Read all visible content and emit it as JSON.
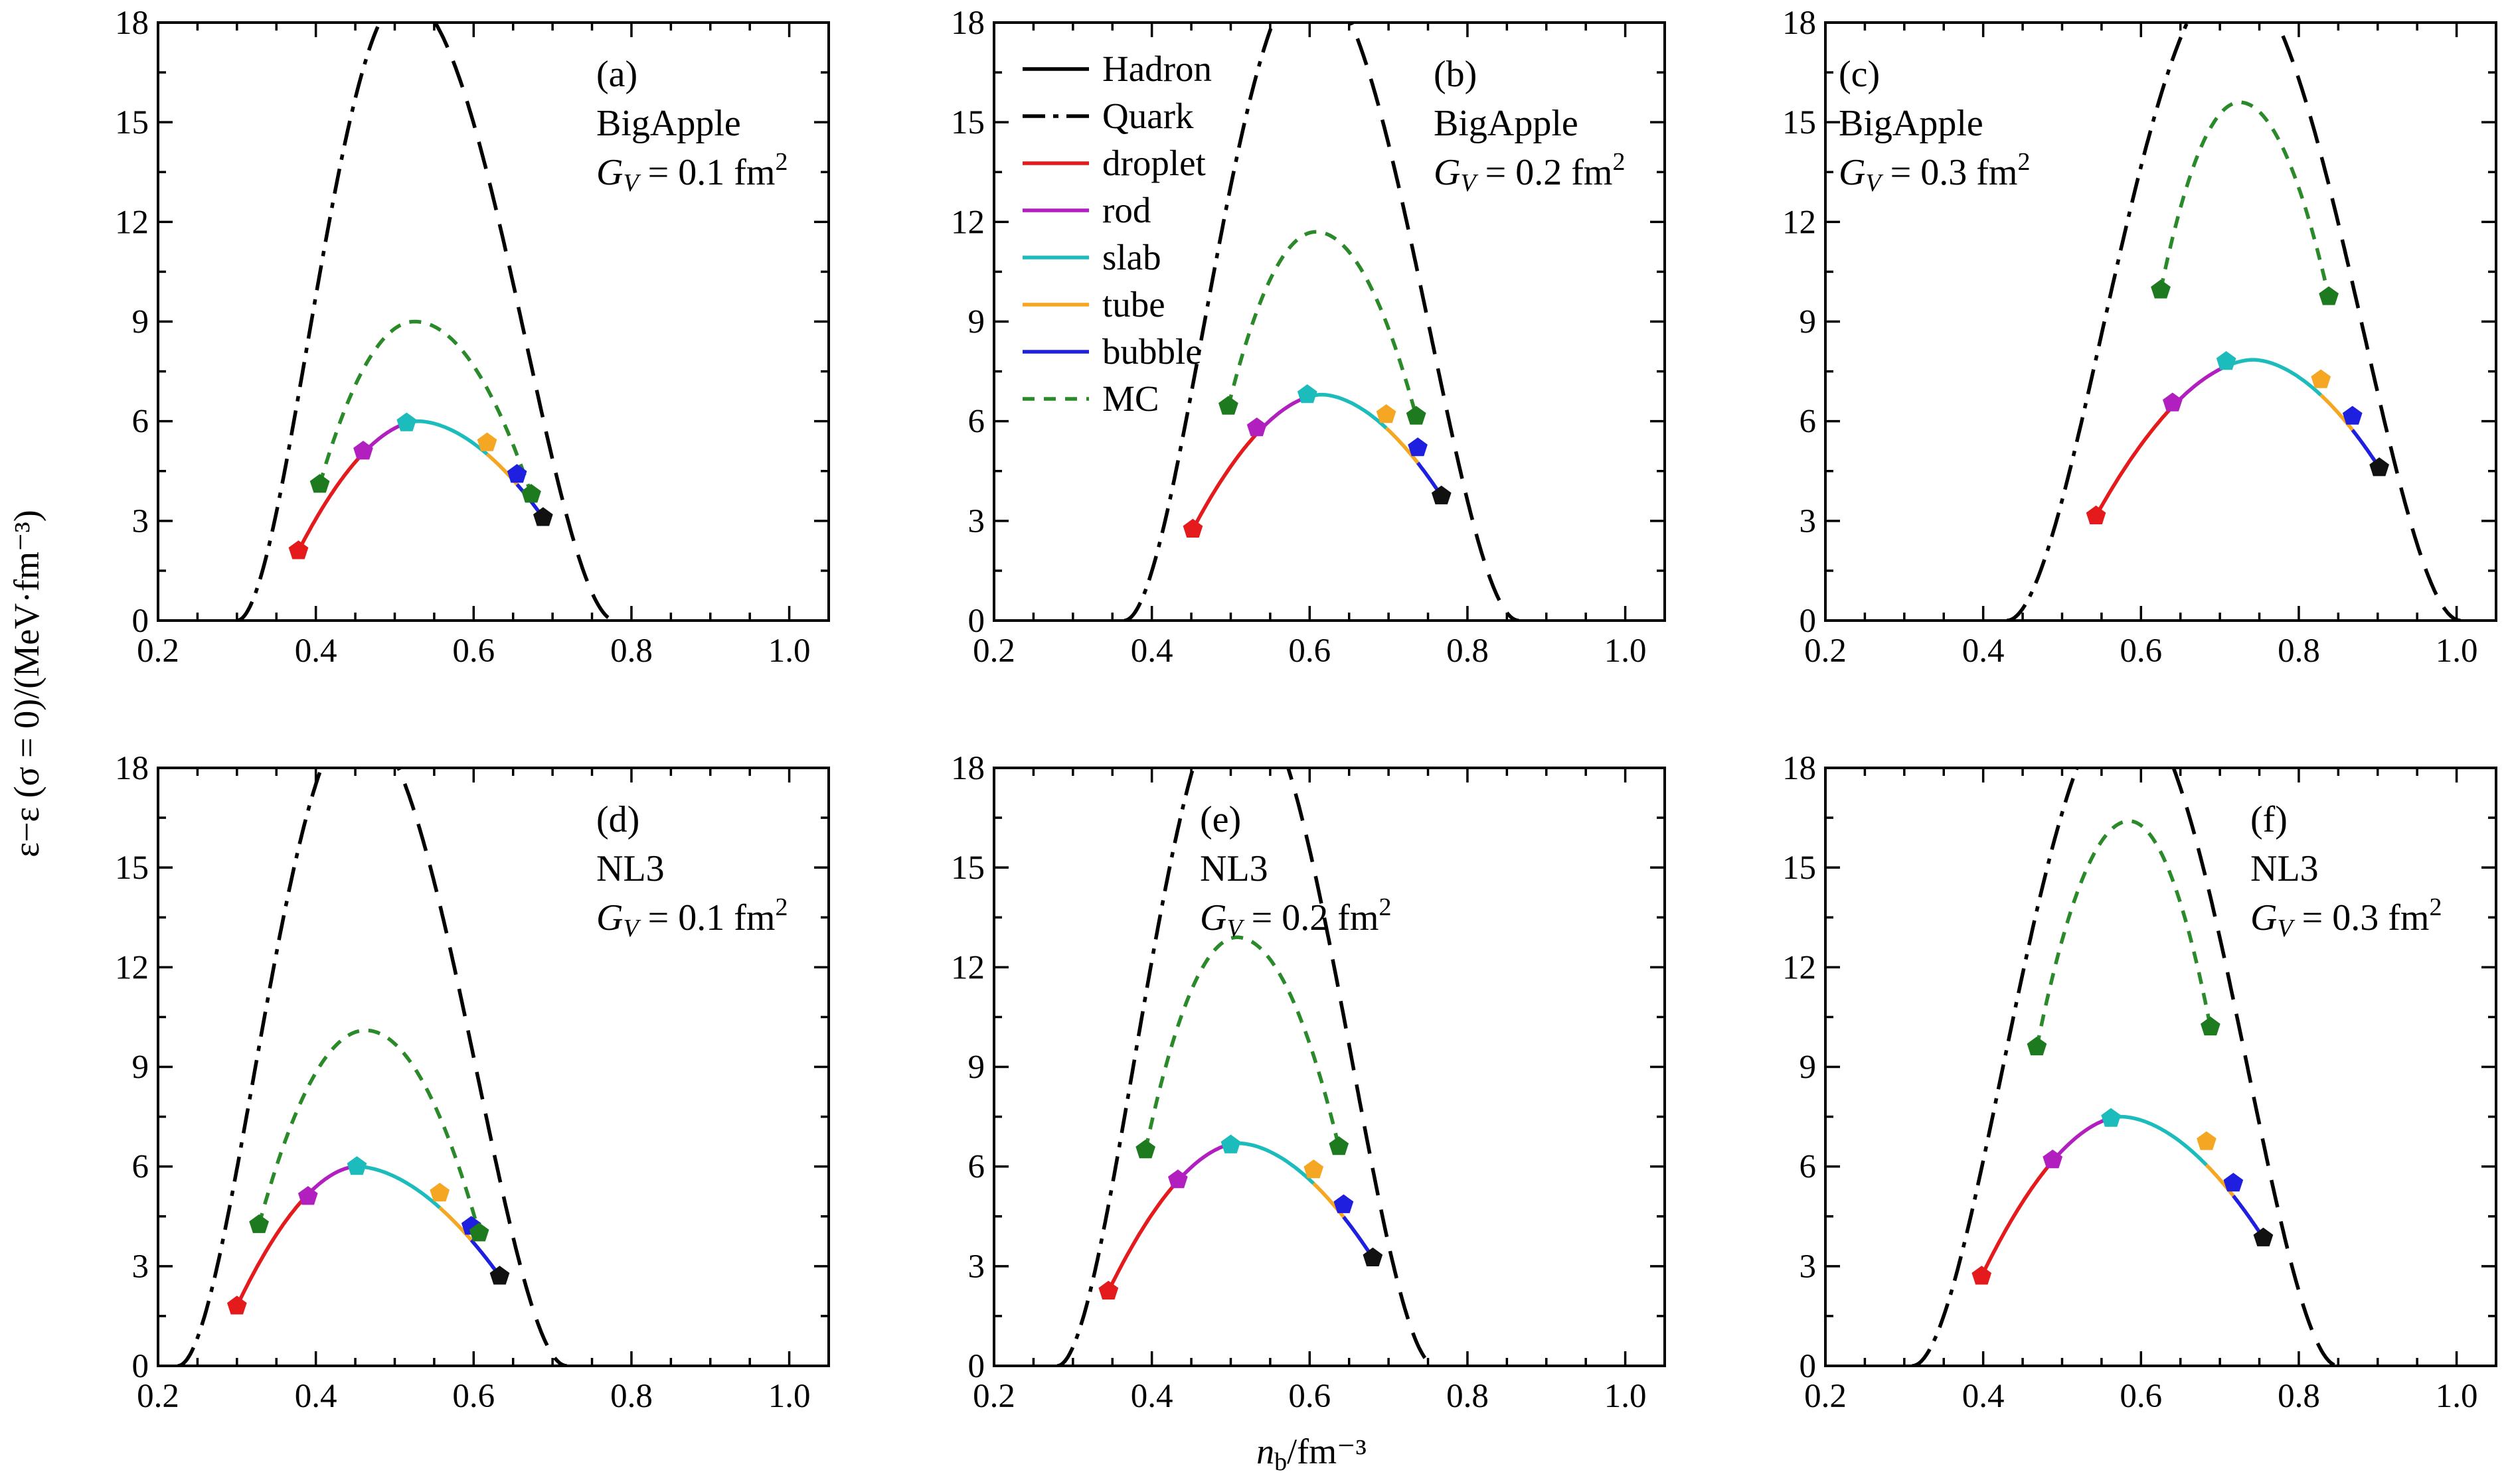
{
  "figure": {
    "ylabel": "ε−ε (σ = 0)/(MeV·fm⁻³)",
    "xlabel": "n_b/fm⁻³"
  },
  "legend": [
    {
      "label": "Hadron",
      "style": "solid",
      "color": "#000000"
    },
    {
      "label": "Quark",
      "style": "dashdot",
      "color": "#000000"
    },
    {
      "label": "droplet",
      "style": "solid",
      "color": "#e41a1c"
    },
    {
      "label": "rod",
      "style": "solid",
      "color": "#b21fbf"
    },
    {
      "label": "slab",
      "style": "solid",
      "color": "#1cbcbc"
    },
    {
      "label": "tube",
      "style": "solid",
      "color": "#f5a623"
    },
    {
      "label": "bubble",
      "style": "solid",
      "color": "#1f1fe0"
    },
    {
      "label": "MC",
      "style": "dotted",
      "color": "#2a8a2a"
    }
  ],
  "colors": {
    "droplet": "#e41a1c",
    "rod": "#b21fbf",
    "slab": "#1cbcbc",
    "tube": "#f5a623",
    "bubble": "#1f1fe0",
    "mc": "#2a8a2a",
    "mc_marker": "#1e7a1e",
    "end_marker": "#111111",
    "axis": "#000000"
  },
  "chart_data": [
    {
      "type": "line",
      "tag": "(a)",
      "model": "BigApple",
      "gv": "0.1",
      "xlim": [
        0.2,
        1.05
      ],
      "ylim": [
        0,
        18
      ],
      "xticks": [
        0.2,
        0.4,
        0.6,
        0.8,
        1.0
      ],
      "xtick_labels": [
        "0.2",
        "0.4",
        "0.6",
        "0.8",
        "1.0"
      ],
      "yticks": [
        0,
        3,
        6,
        9,
        12,
        15,
        18
      ],
      "ytick_labels": [
        "0",
        "3",
        "6",
        "9",
        "12",
        "15",
        "18"
      ],
      "hadron": {
        "x0": 0.3,
        "peak_x": 0.512,
        "peak_y": 18.8,
        "x1": 0.78
      },
      "mc": {
        "peak_x": 0.525,
        "peak_y": 9.0,
        "left_x": 0.405,
        "right_x": 0.673
      },
      "pasta_peak": {
        "x": 0.53,
        "y": 6.0
      },
      "markers": [
        {
          "phase": "droplet",
          "x": 0.378,
          "y": 2.1
        },
        {
          "phase": "rod",
          "x": 0.46,
          "y": 5.1
        },
        {
          "phase": "slab",
          "x": 0.515,
          "y": 5.95
        },
        {
          "phase": "tube",
          "x": 0.617,
          "y": 5.35
        },
        {
          "phase": "bubble",
          "x": 0.655,
          "y": 4.4
        },
        {
          "phase": "mc",
          "x": 0.405,
          "y": 4.1
        },
        {
          "phase": "mc",
          "x": 0.673,
          "y": 3.8
        },
        {
          "phase": "end",
          "x": 0.688,
          "y": 3.1
        }
      ]
    },
    {
      "type": "line",
      "tag": "(b)",
      "model": "BigApple",
      "gv": "0.2",
      "xlim": [
        0.2,
        1.05
      ],
      "ylim": [
        0,
        18
      ],
      "xticks": [
        0.2,
        0.4,
        0.6,
        0.8,
        1.0
      ],
      "xtick_labels": [
        "0.2",
        "0.4",
        "0.6",
        "0.8",
        "1.0"
      ],
      "yticks": [
        0,
        3,
        6,
        9,
        12,
        15,
        18
      ],
      "ytick_labels": [
        "0",
        "3",
        "6",
        "9",
        "12",
        "15",
        "18"
      ],
      "hadron": {
        "x0": 0.365,
        "peak_x": 0.6,
        "peak_y": 19.5,
        "x1": 0.865
      },
      "mc": {
        "peak_x": 0.608,
        "peak_y": 11.7,
        "left_x": 0.497,
        "right_x": 0.735
      },
      "pasta_peak": {
        "x": 0.615,
        "y": 6.8
      },
      "markers": [
        {
          "phase": "droplet",
          "x": 0.452,
          "y": 2.75
        },
        {
          "phase": "rod",
          "x": 0.533,
          "y": 5.8
        },
        {
          "phase": "slab",
          "x": 0.597,
          "y": 6.8
        },
        {
          "phase": "tube",
          "x": 0.697,
          "y": 6.2
        },
        {
          "phase": "bubble",
          "x": 0.737,
          "y": 5.2
        },
        {
          "phase": "mc",
          "x": 0.497,
          "y": 6.45
        },
        {
          "phase": "mc",
          "x": 0.735,
          "y": 6.15
        },
        {
          "phase": "end",
          "x": 0.767,
          "y": 3.75
        }
      ]
    },
    {
      "type": "line",
      "tag": "(c)",
      "model": "BigApple",
      "gv": "0.3",
      "xlim": [
        0.2,
        1.05
      ],
      "ylim": [
        0,
        18
      ],
      "xticks": [
        0.2,
        0.4,
        0.6,
        0.8,
        1.0
      ],
      "xtick_labels": [
        "0.2",
        "0.4",
        "0.6",
        "0.8",
        "1.0"
      ],
      "yticks": [
        0,
        3,
        6,
        9,
        12,
        15,
        18
      ],
      "ytick_labels": [
        "0",
        "3",
        "6",
        "9",
        "12",
        "15",
        "18"
      ],
      "hadron": {
        "x0": 0.43,
        "peak_x": 0.715,
        "peak_y": 19.5,
        "x1": 1.005
      },
      "mc": {
        "peak_x": 0.725,
        "peak_y": 15.6,
        "left_x": 0.625,
        "right_x": 0.838
      },
      "pasta_peak": {
        "x": 0.742,
        "y": 7.85
      },
      "markers": [
        {
          "phase": "droplet",
          "x": 0.543,
          "y": 3.15
        },
        {
          "phase": "rod",
          "x": 0.64,
          "y": 6.55
        },
        {
          "phase": "slab",
          "x": 0.708,
          "y": 7.8
        },
        {
          "phase": "tube",
          "x": 0.828,
          "y": 7.25
        },
        {
          "phase": "bubble",
          "x": 0.868,
          "y": 6.15
        },
        {
          "phase": "mc",
          "x": 0.625,
          "y": 9.95
        },
        {
          "phase": "mc",
          "x": 0.838,
          "y": 9.75
        },
        {
          "phase": "end",
          "x": 0.902,
          "y": 4.6
        }
      ]
    },
    {
      "type": "line",
      "tag": "(d)",
      "model": "NL3",
      "gv": "0.1",
      "xlim": [
        0.2,
        1.05
      ],
      "ylim": [
        0,
        18
      ],
      "xticks": [
        0.2,
        0.4,
        0.6,
        0.8,
        1.0
      ],
      "xtick_labels": [
        "0.2",
        "0.4",
        "0.6",
        "0.8",
        "1.0"
      ],
      "yticks": [
        0,
        3,
        6,
        9,
        12,
        15,
        18
      ],
      "ytick_labels": [
        "0",
        "3",
        "6",
        "9",
        "12",
        "15",
        "18"
      ],
      "hadron": {
        "x0": 0.225,
        "peak_x": 0.452,
        "peak_y": 19.5,
        "x1": 0.718
      },
      "mc": {
        "peak_x": 0.463,
        "peak_y": 10.1,
        "left_x": 0.328,
        "right_x": 0.607
      },
      "pasta_peak": {
        "x": 0.452,
        "y": 6.0
      },
      "markers": [
        {
          "phase": "droplet",
          "x": 0.3,
          "y": 1.8
        },
        {
          "phase": "rod",
          "x": 0.39,
          "y": 5.1
        },
        {
          "phase": "slab",
          "x": 0.452,
          "y": 6.0
        },
        {
          "phase": "tube",
          "x": 0.557,
          "y": 5.2
        },
        {
          "phase": "bubble",
          "x": 0.597,
          "y": 4.2
        },
        {
          "phase": "mc",
          "x": 0.328,
          "y": 4.25
        },
        {
          "phase": "mc",
          "x": 0.607,
          "y": 4.0
        },
        {
          "phase": "end",
          "x": 0.633,
          "y": 2.7
        }
      ]
    },
    {
      "type": "line",
      "tag": "(e)",
      "model": "NL3",
      "gv": "0.2",
      "xlim": [
        0.2,
        1.05
      ],
      "ylim": [
        0,
        18
      ],
      "xticks": [
        0.2,
        0.4,
        0.6,
        0.8,
        1.0
      ],
      "xtick_labels": [
        "0.2",
        "0.4",
        "0.6",
        "0.8",
        "1.0"
      ],
      "yticks": [
        0,
        3,
        6,
        9,
        12,
        15,
        18
      ],
      "ytick_labels": [
        "0",
        "3",
        "6",
        "9",
        "12",
        "15",
        "18"
      ],
      "hadron": {
        "x0": 0.28,
        "peak_x": 0.51,
        "peak_y": 20.5,
        "x1": 0.76
      },
      "mc": {
        "peak_x": 0.508,
        "peak_y": 12.9,
        "left_x": 0.392,
        "right_x": 0.637
      },
      "pasta_peak": {
        "x": 0.51,
        "y": 6.7
      },
      "markers": [
        {
          "phase": "droplet",
          "x": 0.345,
          "y": 2.25
        },
        {
          "phase": "rod",
          "x": 0.433,
          "y": 5.6
        },
        {
          "phase": "slab",
          "x": 0.5,
          "y": 6.65
        },
        {
          "phase": "tube",
          "x": 0.605,
          "y": 5.9
        },
        {
          "phase": "bubble",
          "x": 0.643,
          "y": 4.85
        },
        {
          "phase": "mc",
          "x": 0.392,
          "y": 6.5
        },
        {
          "phase": "mc",
          "x": 0.637,
          "y": 6.6
        },
        {
          "phase": "end",
          "x": 0.68,
          "y": 3.25
        }
      ]
    },
    {
      "type": "line",
      "tag": "(f)",
      "model": "NL3",
      "gv": "0.3",
      "xlim": [
        0.2,
        1.05
      ],
      "ylim": [
        0,
        18
      ],
      "xticks": [
        0.2,
        0.4,
        0.6,
        0.8,
        1.0
      ],
      "xtick_labels": [
        "0.2",
        "0.4",
        "0.6",
        "0.8",
        "1.0"
      ],
      "yticks": [
        0,
        3,
        6,
        9,
        12,
        15,
        18
      ],
      "ytick_labels": [
        "0",
        "3",
        "6",
        "9",
        "12",
        "15",
        "18"
      ],
      "hadron": {
        "x0": 0.31,
        "peak_x": 0.58,
        "peak_y": 20.0,
        "x1": 0.85
      },
      "mc": {
        "peak_x": 0.585,
        "peak_y": 16.4,
        "left_x": 0.468,
        "right_x": 0.688
      },
      "pasta_peak": {
        "x": 0.575,
        "y": 7.5
      },
      "markers": [
        {
          "phase": "droplet",
          "x": 0.398,
          "y": 2.7
        },
        {
          "phase": "rod",
          "x": 0.488,
          "y": 6.2
        },
        {
          "phase": "slab",
          "x": 0.562,
          "y": 7.45
        },
        {
          "phase": "tube",
          "x": 0.683,
          "y": 6.75
        },
        {
          "phase": "bubble",
          "x": 0.717,
          "y": 5.5
        },
        {
          "phase": "mc",
          "x": 0.468,
          "y": 9.6
        },
        {
          "phase": "mc",
          "x": 0.688,
          "y": 10.2
        },
        {
          "phase": "end",
          "x": 0.755,
          "y": 3.85
        }
      ]
    }
  ]
}
